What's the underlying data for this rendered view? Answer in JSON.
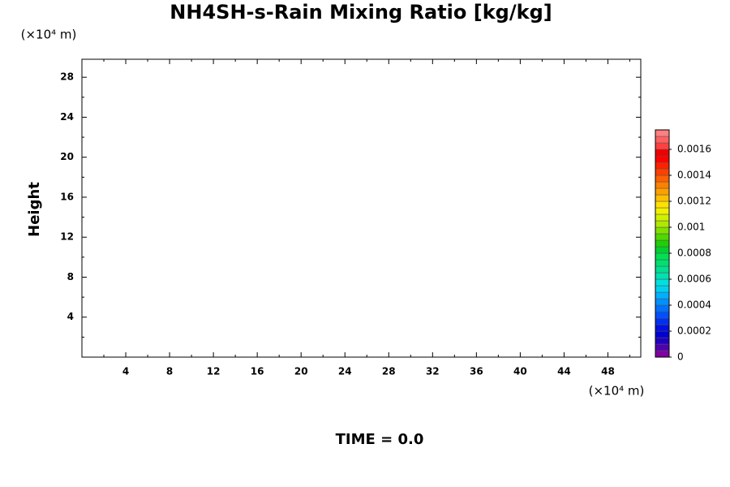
{
  "chart_data": {
    "type": "contour",
    "title": "NH4SH-s-Rain Mixing Ratio [kg/kg]",
    "y_label": "Height",
    "x_unit": "(×10⁴ m)",
    "y_unit": "(×10⁴ m)",
    "footer": "TIME = 0.0",
    "xlim": [
      0,
      51
    ],
    "xticks": [
      4,
      8,
      12,
      16,
      20,
      24,
      28,
      32,
      36,
      40,
      44,
      48
    ],
    "x_minor_ticks": [
      2,
      6,
      10,
      14,
      18,
      22,
      26,
      30,
      34,
      38,
      42,
      46,
      50
    ],
    "ylim": [
      0,
      29.8
    ],
    "yticks": [
      4,
      8,
      12,
      16,
      20,
      24,
      28
    ],
    "y_minor_ticks": [
      2,
      6,
      10,
      14,
      18,
      22,
      26
    ],
    "clim": [
      0,
      0.00175
    ],
    "cticks": [
      0,
      0.0002,
      0.0004,
      0.0006,
      0.0008,
      0.001,
      0.0012,
      0.0014,
      0.0016
    ],
    "colors": [
      "#8000a0",
      "#5000b0",
      "#2000c0",
      "#0000d0",
      "#0010e0",
      "#0030f0",
      "#0050ff",
      "#0070ff",
      "#0090ff",
      "#00b0ff",
      "#00d0f0",
      "#00e0e0",
      "#00e0b0",
      "#00e090",
      "#00e070",
      "#00e050",
      "#00d030",
      "#20d000",
      "#50d800",
      "#80e000",
      "#b0e800",
      "#d0f000",
      "#f0f000",
      "#ffe000",
      "#ffc000",
      "#ffa000",
      "#ff8000",
      "#ff6000",
      "#ff4000",
      "#ff2000",
      "#ff0000",
      "#f00000",
      "#ff4040",
      "#ff6060",
      "#ff8080"
    ]
  }
}
